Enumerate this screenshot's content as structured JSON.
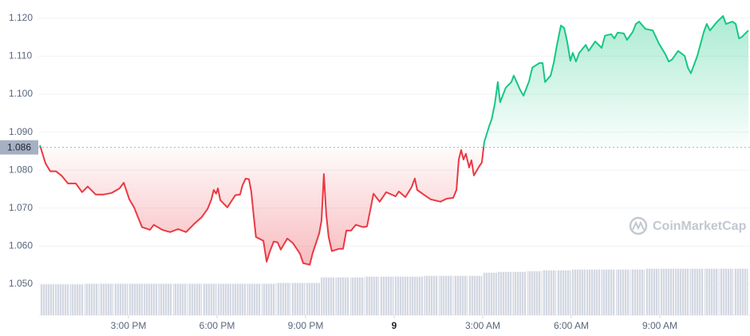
{
  "chart_data": {
    "type": "line",
    "xlim": [
      0,
      24
    ],
    "xticks": [
      {
        "value": 3,
        "label": "3:00 PM"
      },
      {
        "value": 6,
        "label": "6:00 PM"
      },
      {
        "value": 9,
        "label": "9:00 PM"
      },
      {
        "value": 12,
        "label": "9"
      },
      {
        "value": 15,
        "label": "3:00 AM"
      },
      {
        "value": 18,
        "label": "6:00 AM"
      },
      {
        "value": 21,
        "label": "9:00 AM"
      }
    ],
    "ylim": [
      1.0418,
      1.1248
    ],
    "yticks": [
      {
        "value": 1.05,
        "label": "1.050"
      },
      {
        "value": 1.06,
        "label": "1.060"
      },
      {
        "value": 1.07,
        "label": "1.070"
      },
      {
        "value": 1.08,
        "label": "1.080"
      },
      {
        "value": 1.09,
        "label": "1.090"
      },
      {
        "value": 1.1,
        "label": "1.100"
      },
      {
        "value": 1.11,
        "label": "1.110"
      },
      {
        "value": 1.12,
        "label": "1.120"
      }
    ],
    "grid": true,
    "baseline": 1.086,
    "color_above": "#16c784",
    "color_below": "#ea3943",
    "watermark": "CoinMarketCap",
    "series": [
      {
        "x": [
          0,
          0.19,
          0.35,
          0.54,
          0.73,
          0.95,
          1.22,
          1.43,
          1.62,
          1.89,
          2.16,
          2.43,
          2.7,
          2.84,
          3.03,
          3.19,
          3.32,
          3.46,
          3.73,
          3.86,
          4.14,
          4.41,
          4.68,
          4.95,
          5.22,
          5.49,
          5.68,
          5.81,
          5.89,
          5.97,
          6.03,
          6.11,
          6.35,
          6.62,
          6.78,
          6.86,
          6.97,
          7.08,
          7.16,
          7.24,
          7.32,
          7.57,
          7.68,
          7.78,
          7.92,
          8.05,
          8.16,
          8.38,
          8.57,
          8.81,
          8.92,
          9.14,
          9.24,
          9.46,
          9.54,
          9.62,
          9.7,
          9.78,
          9.89,
          10.14,
          10.27,
          10.38,
          10.54,
          10.7,
          10.95,
          11.08,
          11.19,
          11.3,
          11.51,
          11.73,
          12.05,
          12.16,
          12.38,
          12.59,
          12.7,
          12.78,
          13.03,
          13.24,
          13.57,
          13.78,
          14,
          14.11,
          14.19,
          14.27,
          14.35,
          14.43,
          14.54,
          14.62,
          14.7,
          14.89,
          14.97,
          15.05,
          15.22,
          15.3,
          15.41,
          15.51,
          15.59,
          15.78,
          15.97,
          16.05,
          16.27,
          16.38,
          16.57,
          16.68,
          16.92,
          17.03,
          17.11,
          17.3,
          17.41,
          17.51,
          17.65,
          17.76,
          17.86,
          17.97,
          18.05,
          18.16,
          18.27,
          18.49,
          18.59,
          18.81,
          19.03,
          19.14,
          19.35,
          19.46,
          19.57,
          19.78,
          19.89,
          20.08,
          20.19,
          20.3,
          20.51,
          20.76,
          20.97,
          21.19,
          21.3,
          21.41,
          21.62,
          21.84,
          21.95,
          22.05,
          22.27,
          22.49,
          22.59,
          22.7,
          22.92,
          23.14,
          23.24,
          23.46,
          23.57,
          23.68,
          23.78,
          24
        ],
        "values": [
          1.0866,
          1.0818,
          1.0797,
          1.0797,
          1.0786,
          1.0765,
          1.0765,
          1.0742,
          1.0757,
          1.0736,
          1.0736,
          1.074,
          1.0752,
          1.0767,
          1.0723,
          1.0702,
          1.0677,
          1.065,
          1.0643,
          1.0656,
          1.0643,
          1.0637,
          1.0645,
          1.0637,
          1.0658,
          1.0677,
          1.0698,
          1.0723,
          1.0748,
          1.0738,
          1.0752,
          1.0721,
          1.0702,
          1.0734,
          1.0736,
          1.0759,
          1.0778,
          1.0776,
          1.0744,
          1.0681,
          1.0624,
          1.0614,
          1.0559,
          1.0584,
          1.0612,
          1.061,
          1.0591,
          1.062,
          1.0608,
          1.058,
          1.0555,
          1.0551,
          1.0582,
          1.0633,
          1.0668,
          1.079,
          1.0683,
          1.0624,
          1.0587,
          1.0593,
          1.0593,
          1.0641,
          1.0641,
          1.0656,
          1.065,
          1.0652,
          1.0694,
          1.0738,
          1.0717,
          1.0742,
          1.0731,
          1.0744,
          1.0729,
          1.0755,
          1.0778,
          1.0748,
          1.0734,
          1.0723,
          1.0717,
          1.0725,
          1.0727,
          1.0748,
          1.0828,
          1.0853,
          1.0828,
          1.0843,
          1.0807,
          1.0826,
          1.0786,
          1.0811,
          1.082,
          1.0874,
          1.0916,
          1.0933,
          1.0975,
          1.1032,
          1.0979,
          1.1017,
          1.1032,
          1.1049,
          1.1011,
          1.0996,
          1.1034,
          1.107,
          1.1082,
          1.1082,
          1.1032,
          1.1049,
          1.1084,
          1.1128,
          1.1181,
          1.1174,
          1.1139,
          1.1088,
          1.1109,
          1.1086,
          1.1109,
          1.113,
          1.1114,
          1.1139,
          1.1122,
          1.1154,
          1.1158,
          1.1147,
          1.1162,
          1.116,
          1.1143,
          1.1164,
          1.1185,
          1.1191,
          1.1172,
          1.1168,
          1.1133,
          1.1105,
          1.1086,
          1.1091,
          1.1114,
          1.1101,
          1.107,
          1.1055,
          1.1101,
          1.1164,
          1.1185,
          1.1168,
          1.1189,
          1.1206,
          1.1185,
          1.1191,
          1.1185,
          1.1147,
          1.1151,
          1.1168
        ]
      }
    ],
    "volume": {
      "color": "#d3d8e2",
      "y2lim": [
        0,
        400
      ],
      "x": [
        0.25,
        0.75,
        1.25,
        1.75,
        2.25,
        2.75,
        3.25,
        3.75,
        4.25,
        4.75,
        5.25,
        5.75,
        6.25,
        6.75,
        7.25,
        7.75,
        8.25,
        8.75,
        9.25,
        9.75,
        10.25,
        10.75,
        11.25,
        11.75,
        12.25,
        12.75,
        13.25,
        13.75,
        14.25,
        14.75,
        15.25,
        15.75,
        16.25,
        16.75,
        17.25,
        17.75,
        18.25,
        18.75,
        19.25,
        19.75,
        20.25,
        20.75,
        21.25,
        21.75,
        22.25,
        22.75,
        23.25,
        23.75
      ],
      "values": [
        39,
        39,
        39,
        40,
        40,
        40,
        40,
        40,
        40,
        40,
        40,
        40,
        40,
        40,
        40,
        40,
        41,
        41,
        41,
        48,
        48,
        48,
        49,
        49,
        49,
        49,
        50,
        50,
        50,
        50,
        54,
        55,
        55,
        56,
        57,
        57,
        58,
        58,
        58,
        58,
        58,
        59,
        59,
        59,
        59,
        59,
        59,
        59
      ]
    }
  }
}
